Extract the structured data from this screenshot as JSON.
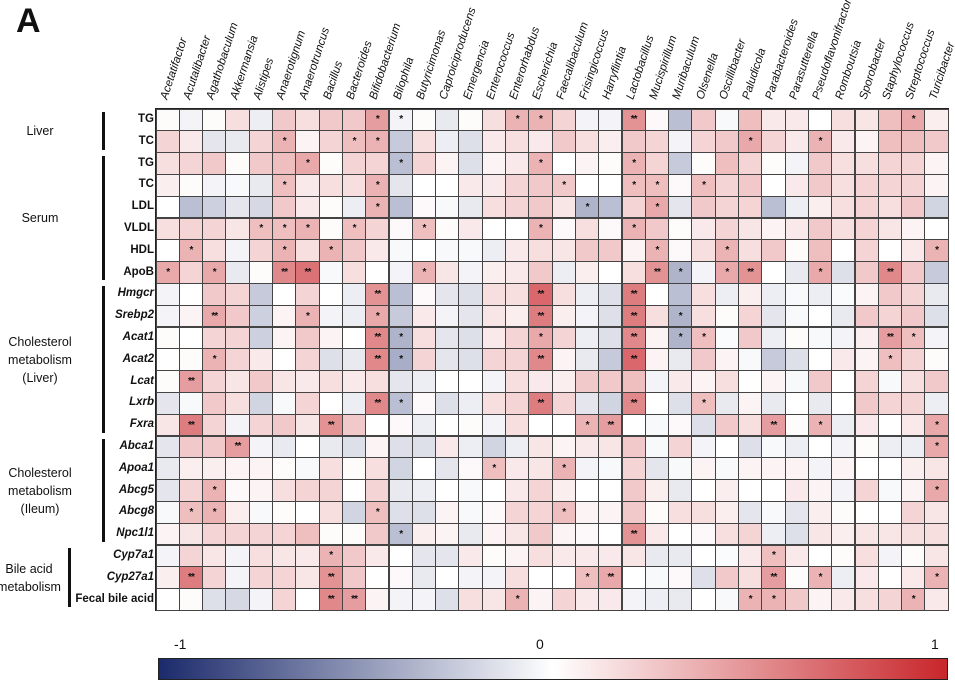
{
  "panel_label": "A",
  "chart_data": {
    "type": "heatmap",
    "columns": [
      "Acetatifactor",
      "Acutalibacter",
      "Agathobaculum",
      "Akkermansia",
      "Alistipes",
      "Anaerotignum",
      "Anaerotruncus",
      "Bacillus",
      "Bacteroides",
      "Bifidobacterium",
      "Bilophila",
      "Butyricimonas",
      "Caproiciproducens",
      "Emergencia",
      "Enterococcus",
      "Enterorhabdus",
      "Escherichia",
      "Faecalibaculum",
      "Frisingicoccus",
      "Harryflintia",
      "Lactobacillus",
      "Mucispirillum",
      "Muribaculum",
      "Olsenella",
      "Oscillibacter",
      "Paludicola",
      "Parabacteroides",
      "Parasutterella",
      "Pseudoflavonifractor",
      "Romboutsia",
      "Sporobacter",
      "Staphylococcus",
      "Streptococcus",
      "Turicibacter"
    ],
    "rows": [
      {
        "label": "TG",
        "italic": false
      },
      {
        "label": "TC",
        "italic": false
      },
      {
        "label": "TG",
        "italic": false
      },
      {
        "label": "TC",
        "italic": false
      },
      {
        "label": "LDL",
        "italic": false
      },
      {
        "label": "VLDL",
        "italic": false
      },
      {
        "label": "HDL",
        "italic": false
      },
      {
        "label": "ApoB",
        "italic": false
      },
      {
        "label": "Hmgcr",
        "italic": true
      },
      {
        "label": "Srebp2",
        "italic": true
      },
      {
        "label": "Acat1",
        "italic": true
      },
      {
        "label": "Acat2",
        "italic": true
      },
      {
        "label": "Lcat",
        "italic": true
      },
      {
        "label": "Lxrb",
        "italic": true
      },
      {
        "label": "Fxra",
        "italic": true
      },
      {
        "label": "Abca1",
        "italic": true
      },
      {
        "label": "Apoa1",
        "italic": true
      },
      {
        "label": "Abcg5",
        "italic": true
      },
      {
        "label": "Abcg8",
        "italic": true
      },
      {
        "label": "Npc1l1",
        "italic": true
      },
      {
        "label": "Cyp7a1",
        "italic": true
      },
      {
        "label": "Cyp27a1",
        "italic": true
      },
      {
        "label": "Fecal bile acid",
        "italic": false
      }
    ],
    "groups": [
      {
        "lines": [
          "Liver"
        ],
        "rows": [
          0,
          1
        ]
      },
      {
        "lines": [
          "Serum"
        ],
        "rows": [
          2,
          7
        ]
      },
      {
        "lines": [
          "Cholesterol",
          "metabolism",
          "(Liver)"
        ],
        "rows": [
          8,
          14
        ]
      },
      {
        "lines": [
          "Cholesterol",
          "metabolism",
          "(Ileum)"
        ],
        "rows": [
          15,
          19
        ]
      },
      {
        "lines": [
          "Bile acid",
          "metabolism"
        ],
        "rows": [
          20,
          22
        ]
      }
    ],
    "values": [
      [
        0.02,
        -0.05,
        0.02,
        0.15,
        -0.08,
        0.25,
        0.15,
        0.25,
        0.25,
        0.45,
        -0.05,
        0.02,
        -0.1,
        0.02,
        0.15,
        0.35,
        0.35,
        0.2,
        -0.05,
        -0.05,
        0.5,
        0.03,
        -0.3,
        0.25,
        -0.03,
        0.3,
        0.1,
        0.1,
        0.0,
        0.15,
        0.12,
        0.3,
        0.4,
        0.08
      ],
      [
        0.2,
        0.1,
        -0.12,
        -0.1,
        0.2,
        0.35,
        0.05,
        0.2,
        0.3,
        0.35,
        -0.25,
        0.15,
        -0.08,
        -0.15,
        0.1,
        0.15,
        0.1,
        0.25,
        0.15,
        0.08,
        0.25,
        0.2,
        -0.05,
        0.2,
        0.25,
        0.4,
        0.2,
        0.1,
        0.35,
        0.1,
        0.05,
        0.3,
        0.3,
        0.25
      ],
      [
        0.15,
        0.2,
        0.25,
        0.02,
        0.25,
        0.3,
        0.4,
        0.02,
        0.2,
        0.2,
        -0.3,
        0.2,
        0.05,
        -0.15,
        0.05,
        0.1,
        0.35,
        0.0,
        0.05,
        0.02,
        0.35,
        0.2,
        -0.25,
        0.02,
        0.3,
        0.2,
        0.02,
        -0.05,
        0.25,
        0.15,
        0.15,
        0.2,
        0.2,
        0.05
      ],
      [
        0.08,
        0.02,
        -0.05,
        -0.03,
        -0.1,
        0.3,
        0.1,
        0.15,
        0.15,
        0.35,
        -0.12,
        0.0,
        0.0,
        0.1,
        0.1,
        0.2,
        0.25,
        0.25,
        0.0,
        0.0,
        0.3,
        0.3,
        0.03,
        0.3,
        0.2,
        0.25,
        0.0,
        0.1,
        0.25,
        0.15,
        0.2,
        0.2,
        0.2,
        0.05
      ],
      [
        0.0,
        -0.3,
        -0.22,
        -0.12,
        -0.18,
        0.25,
        0.1,
        0.02,
        -0.08,
        0.35,
        -0.3,
        0.03,
        -0.03,
        -0.1,
        0.15,
        0.2,
        0.25,
        0.12,
        -0.35,
        -0.3,
        0.2,
        0.4,
        -0.12,
        0.25,
        0.2,
        0.2,
        -0.3,
        -0.08,
        0.08,
        0.15,
        0.2,
        0.15,
        0.25,
        -0.2
      ],
      [
        0.15,
        0.2,
        0.2,
        0.12,
        0.3,
        0.3,
        0.35,
        0.02,
        0.3,
        0.2,
        0.03,
        0.3,
        0.02,
        0.1,
        0.0,
        0.0,
        0.35,
        0.03,
        0.15,
        0.03,
        0.35,
        0.25,
        0.02,
        0.1,
        0.2,
        0.12,
        0.05,
        0.1,
        0.25,
        0.15,
        0.2,
        0.12,
        0.05,
        0.0
      ],
      [
        0.0,
        0.35,
        0.15,
        -0.05,
        0.2,
        0.35,
        0.15,
        0.35,
        0.25,
        0.1,
        -0.03,
        0.0,
        -0.03,
        -0.03,
        -0.08,
        0.1,
        0.15,
        0.12,
        0.25,
        0.25,
        0.05,
        0.35,
        0.03,
        0.15,
        0.35,
        0.15,
        0.25,
        0.02,
        0.3,
        0.0,
        0.2,
        0.0,
        0.1,
        0.35
      ],
      [
        0.4,
        0.2,
        0.4,
        -0.1,
        0.02,
        0.55,
        0.65,
        -0.03,
        0.15,
        0.0,
        -0.05,
        0.35,
        0.12,
        -0.05,
        0.08,
        0.1,
        0.25,
        -0.08,
        0.08,
        0.0,
        0.15,
        0.5,
        -0.35,
        -0.05,
        0.4,
        0.5,
        0.0,
        -0.1,
        0.4,
        -0.15,
        0.25,
        0.55,
        0.25,
        -0.25
      ],
      [
        -0.05,
        0.0,
        0.25,
        0.2,
        -0.25,
        0.0,
        0.2,
        0.0,
        -0.08,
        0.5,
        -0.3,
        0.03,
        -0.12,
        -0.15,
        0.15,
        0.15,
        0.7,
        0.15,
        -0.08,
        -0.15,
        0.6,
        0.0,
        -0.3,
        0.15,
        -0.08,
        0.08,
        -0.08,
        -0.03,
        -0.08,
        -0.02,
        0.05,
        0.25,
        0.2,
        -0.1
      ],
      [
        -0.05,
        0.05,
        0.4,
        0.25,
        -0.22,
        0.05,
        0.35,
        -0.05,
        -0.08,
        0.4,
        -0.25,
        0.1,
        -0.05,
        -0.12,
        0.12,
        0.08,
        0.6,
        0.08,
        -0.05,
        -0.15,
        0.6,
        0.15,
        -0.35,
        0.15,
        0.02,
        0.2,
        -0.12,
        -0.03,
        0.0,
        -0.1,
        0.25,
        0.2,
        0.25,
        -0.15
      ],
      [
        0.02,
        0.0,
        0.2,
        0.2,
        -0.22,
        0.05,
        0.25,
        0.05,
        0.0,
        0.55,
        -0.35,
        0.15,
        -0.12,
        -0.15,
        0.1,
        0.2,
        0.4,
        0.2,
        -0.08,
        -0.15,
        0.55,
        0.05,
        -0.35,
        0.3,
        -0.02,
        0.25,
        -0.08,
        0.02,
        -0.03,
        -0.05,
        0.08,
        0.45,
        0.3,
        -0.05
      ],
      [
        0.0,
        0.02,
        0.35,
        0.2,
        0.1,
        0.0,
        0.2,
        -0.15,
        -0.1,
        0.55,
        -0.38,
        0.2,
        -0.12,
        -0.15,
        0.2,
        0.2,
        0.55,
        0.05,
        -0.1,
        -0.25,
        0.7,
        0.05,
        -0.1,
        0.25,
        0.05,
        -0.03,
        -0.25,
        -0.15,
        0.0,
        0.1,
        0.05,
        0.3,
        0.2,
        0.02
      ],
      [
        0.02,
        0.45,
        0.2,
        0.12,
        0.25,
        0.12,
        0.1,
        0.15,
        0.1,
        0.15,
        -0.12,
        -0.08,
        0.0,
        0.0,
        -0.05,
        0.15,
        0.1,
        0.08,
        0.25,
        0.25,
        0.3,
        -0.05,
        0.1,
        0.05,
        0.15,
        0.0,
        0.05,
        -0.03,
        0.25,
        0.0,
        0.2,
        -0.03,
        0.15,
        0.25
      ],
      [
        -0.12,
        -0.03,
        0.25,
        0.15,
        -0.2,
        -0.03,
        0.2,
        0.0,
        -0.08,
        0.55,
        -0.3,
        0.03,
        -0.15,
        -0.08,
        0.15,
        0.2,
        0.6,
        0.2,
        -0.12,
        -0.2,
        0.55,
        0.0,
        -0.15,
        0.3,
        -0.1,
        0.05,
        -0.1,
        0.0,
        -0.1,
        0.0,
        0.25,
        0.2,
        0.2,
        -0.08
      ],
      [
        0.12,
        0.6,
        0.2,
        -0.05,
        0.2,
        0.25,
        0.12,
        0.5,
        0.25,
        0.0,
        0.03,
        -0.08,
        0.0,
        0.02,
        -0.05,
        0.15,
        0.0,
        0.0,
        0.35,
        0.45,
        0.0,
        -0.03,
        0.03,
        -0.15,
        0.25,
        0.15,
        0.45,
        0.02,
        0.35,
        -0.08,
        0.1,
        0.0,
        0.1,
        0.4
      ],
      [
        -0.12,
        0.25,
        0.25,
        0.45,
        -0.05,
        -0.1,
        0.0,
        -0.1,
        -0.15,
        0.05,
        -0.15,
        -0.15,
        0.1,
        -0.08,
        -0.2,
        -0.08,
        0.12,
        0.05,
        0.1,
        0.12,
        0.25,
        -0.03,
        0.2,
        -0.05,
        0.0,
        -0.15,
        -0.03,
        -0.08,
        0.0,
        -0.05,
        0.02,
        -0.08,
        -0.08,
        0.4
      ],
      [
        -0.1,
        0.08,
        0.08,
        0.05,
        0.05,
        0.02,
        -0.03,
        0.15,
        0.02,
        0.15,
        -0.2,
        0.0,
        -0.12,
        0.03,
        0.3,
        0.1,
        0.12,
        0.35,
        -0.05,
        -0.03,
        0.2,
        -0.12,
        -0.03,
        0.05,
        -0.03,
        0.05,
        0.05,
        0.05,
        -0.05,
        0.05,
        0.0,
        0.0,
        0.08,
        0.12
      ],
      [
        -0.12,
        0.2,
        0.35,
        0.03,
        0.05,
        0.15,
        0.2,
        0.2,
        0.0,
        0.2,
        -0.1,
        -0.08,
        0.0,
        -0.03,
        0.0,
        0.1,
        0.2,
        0.08,
        0.0,
        0.0,
        0.25,
        0.08,
        -0.1,
        0.0,
        0.08,
        0.0,
        0.0,
        0.1,
        0.05,
        -0.05,
        0.2,
        -0.03,
        0.05,
        0.4
      ],
      [
        -0.03,
        0.3,
        0.35,
        0.08,
        -0.03,
        0.02,
        0.0,
        0.15,
        -0.2,
        0.3,
        -0.15,
        -0.15,
        0.05,
        -0.03,
        0.03,
        0.2,
        0.2,
        0.3,
        0.05,
        0.05,
        0.25,
        0.02,
        0.15,
        0.15,
        0.08,
        -0.12,
        -0.03,
        -0.12,
        0.08,
        0.02,
        0.0,
        0.0,
        0.2,
        0.12
      ],
      [
        0.05,
        0.12,
        0.2,
        0.2,
        0.2,
        0.2,
        0.3,
        0.02,
        0.02,
        0.25,
        -0.3,
        0.08,
        0.05,
        -0.1,
        0.05,
        0.12,
        0.25,
        0.05,
        0.03,
        0.0,
        0.5,
        0.1,
        0.0,
        0.03,
        0.15,
        0.2,
        -0.08,
        -0.15,
        0.12,
        0.08,
        0.12,
        0.12,
        0.15,
        0.15
      ],
      [
        -0.05,
        0.2,
        0.12,
        -0.05,
        0.15,
        0.12,
        0.1,
        0.35,
        0.25,
        0.1,
        0.0,
        -0.12,
        -0.12,
        0.1,
        0.02,
        0.05,
        0.15,
        0.1,
        0.1,
        0.1,
        0.12,
        -0.1,
        -0.1,
        0.0,
        -0.02,
        0.1,
        0.3,
        0.1,
        0.0,
        0.02,
        0.15,
        -0.05,
        0.02,
        0.12
      ],
      [
        0.08,
        0.6,
        0.2,
        -0.05,
        0.2,
        0.2,
        0.12,
        0.5,
        0.25,
        0.0,
        0.03,
        -0.1,
        0.0,
        -0.05,
        -0.05,
        0.15,
        0.0,
        0.0,
        0.3,
        0.4,
        0.0,
        -0.03,
        0.03,
        -0.15,
        0.25,
        0.15,
        0.45,
        0.02,
        0.35,
        -0.08,
        0.1,
        0.0,
        0.1,
        0.35
      ],
      [
        0.0,
        0.02,
        -0.15,
        -0.18,
        -0.05,
        0.2,
        0.0,
        0.55,
        0.45,
        0.05,
        -0.05,
        -0.05,
        -0.15,
        0.15,
        0.12,
        0.35,
        0.05,
        0.2,
        0.1,
        0.1,
        -0.05,
        -0.08,
        -0.1,
        0.0,
        -0.03,
        0.35,
        0.35,
        0.25,
        0.05,
        0.1,
        0.15,
        0.2,
        0.35,
        0.1
      ]
    ],
    "significance": [
      {
        "9": "*",
        "10": "*",
        "15": "*",
        "16": "*",
        "20": "**",
        "32": "*"
      },
      {
        "5": "*",
        "8": "*",
        "9": "*",
        "25": "*",
        "28": "*"
      },
      {
        "6": "*",
        "10": "*",
        "16": "*",
        "20": "*"
      },
      {
        "5": "*",
        "9": "*",
        "17": "*",
        "20": "*",
        "21": "*",
        "23": "*"
      },
      {
        "9": "*",
        "18": "*",
        "21": "*"
      },
      {
        "4": "*",
        "5": "*",
        "6": "*",
        "8": "*",
        "11": "*",
        "16": "*",
        "20": "*"
      },
      {
        "1": "*",
        "5": "*",
        "7": "*",
        "21": "*",
        "24": "*",
        "33": "*"
      },
      {
        "0": "*",
        "2": "*",
        "5": "**",
        "6": "**",
        "11": "*",
        "21": "**",
        "22": "*",
        "24": "*",
        "25": "**",
        "28": "*",
        "31": "**"
      },
      {
        "9": "**",
        "16": "**",
        "20": "**"
      },
      {
        "2": "**",
        "6": "*",
        "9": "*",
        "16": "**",
        "20": "**",
        "22": "*"
      },
      {
        "9": "**",
        "10": "*",
        "16": "*",
        "20": "**",
        "22": "*",
        "23": "*",
        "31": "**",
        "32": "*"
      },
      {
        "2": "*",
        "9": "**",
        "10": "*",
        "16": "**",
        "20": "**",
        "31": "*"
      },
      {
        "1": "**"
      },
      {
        "9": "**",
        "10": "*",
        "16": "**",
        "20": "**",
        "23": "*"
      },
      {
        "1": "**",
        "7": "**",
        "18": "*",
        "19": "**",
        "26": "**",
        "28": "*",
        "33": "*"
      },
      {
        "3": "**",
        "33": "*"
      },
      {
        "14": "*",
        "17": "*"
      },
      {
        "2": "*",
        "33": "*"
      },
      {
        "1": "*",
        "2": "*",
        "9": "*",
        "17": "*"
      },
      {
        "10": "*",
        "20": "**"
      },
      {
        "7": "*",
        "26": "*"
      },
      {
        "1": "**",
        "7": "**",
        "18": "*",
        "19": "**",
        "26": "**",
        "28": "*",
        "33": "*"
      },
      {
        "7": "**",
        "8": "**",
        "15": "*",
        "25": "*",
        "26": "*",
        "32": "*"
      }
    ],
    "colorbar": {
      "min": -1,
      "max": 1,
      "ticks": [
        "-1",
        "0",
        "1"
      ],
      "colors": {
        "low": "#1b2a6b",
        "mid": "#ffffff",
        "high": "#c8262b"
      }
    },
    "legend_position": "bottom"
  }
}
